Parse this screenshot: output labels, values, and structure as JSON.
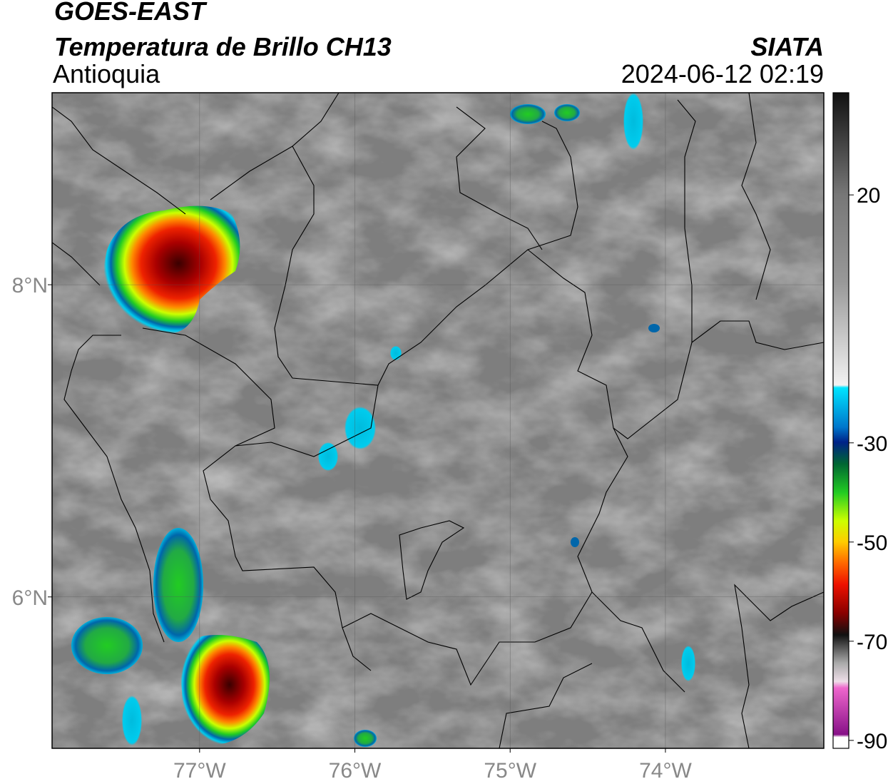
{
  "header": {
    "satellite": "GOES-EAST",
    "product": "Temperatura de Brillo CH13",
    "source": "SIATA",
    "region": "Antioquia",
    "timestamp": "2024-06-12 02:19"
  },
  "map": {
    "xlim": [
      -77.95,
      -72.98
    ],
    "ylim": [
      5.03,
      9.23
    ],
    "xticks": [
      {
        "value": -77,
        "label": "77°W"
      },
      {
        "value": -76,
        "label": "76°W"
      },
      {
        "value": -75,
        "label": "75°W"
      },
      {
        "value": -74,
        "label": "74°W"
      }
    ],
    "yticks": [
      {
        "value": 6,
        "label": "6°N"
      },
      {
        "value": 8,
        "label": "8°N"
      }
    ]
  },
  "colorbar": {
    "lim": [
      -91.6,
      40.6
    ],
    "ticks": [
      20,
      -30,
      -50,
      -70,
      -90
    ]
  }
}
